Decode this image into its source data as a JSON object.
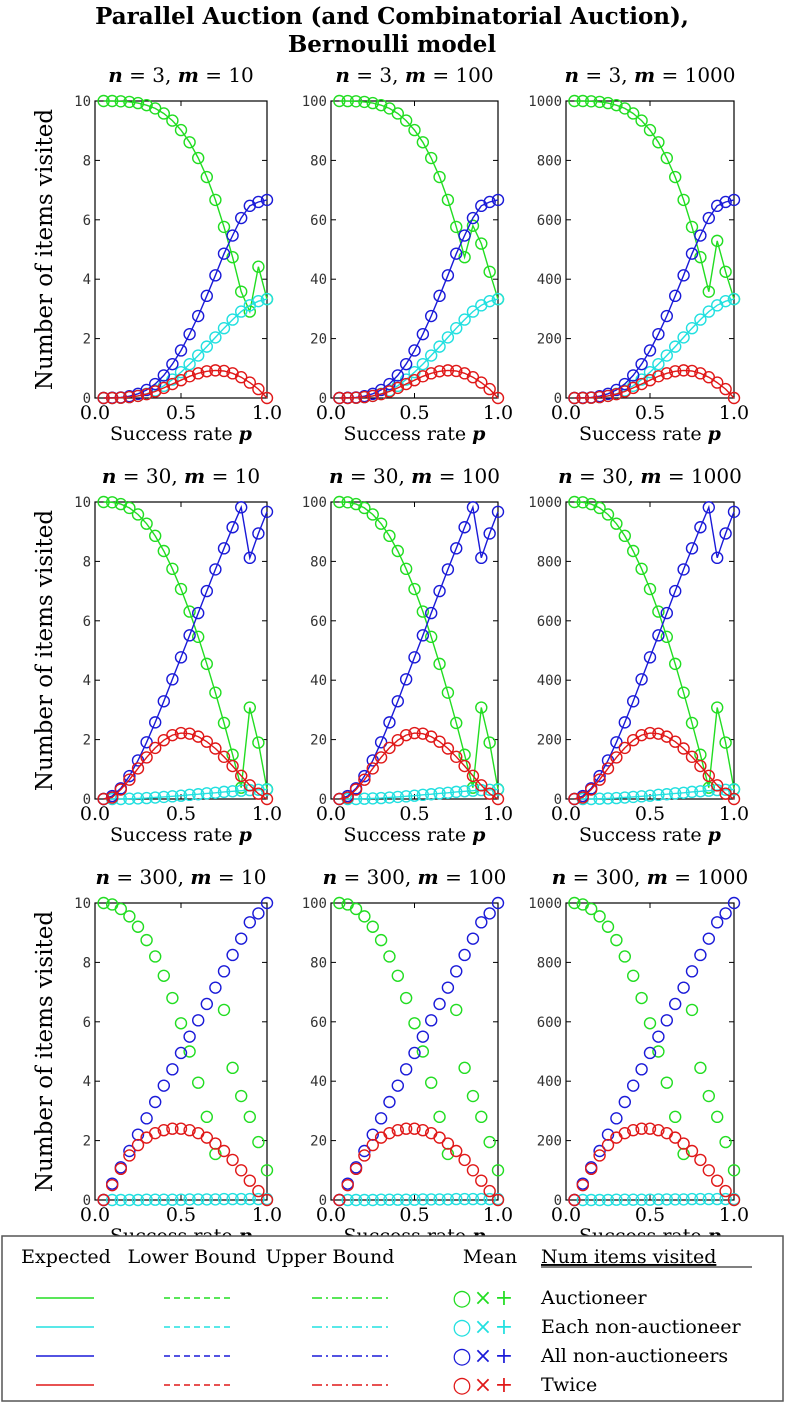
{
  "chart_data": {
    "type": "scatter",
    "title": "Parallel Auction (and Combinatorial Auction),",
    "subtitle": "Bernoulli model",
    "xlabel": "Success rate",
    "xlabel_var": "p",
    "ylabel": "Number of items visited",
    "xlim": [
      0,
      1
    ],
    "x_ticks": [
      "0.0",
      "0.5",
      "1.0"
    ],
    "p_values": [
      0.05,
      0.1,
      0.15,
      0.2,
      0.25,
      0.3,
      0.35,
      0.4,
      0.45,
      0.5,
      0.55,
      0.6,
      0.65,
      0.7,
      0.75,
      0.8,
      0.85,
      0.9,
      0.95,
      1.0
    ],
    "colors": {
      "auctioneer": "#22dd22",
      "each": "#22e0e0",
      "all": "#1a1ad8",
      "twice": "#e01818"
    },
    "panels": [
      {
        "n": "3",
        "m": "10",
        "ylim": [
          0,
          10
        ],
        "y_ticks": [
          "0",
          "2",
          "4",
          "6",
          "8",
          "10"
        ],
        "lines": true,
        "auctioneer": [
          10.0,
          10.0,
          9.99,
          9.97,
          9.93,
          9.86,
          9.75,
          9.58,
          9.34,
          9.02,
          8.61,
          8.08,
          7.44,
          6.67,
          5.76,
          4.74,
          3.58,
          2.91,
          4.42,
          3.33
        ],
        "each": [
          0.0,
          0.0,
          0.01,
          0.03,
          0.07,
          0.14,
          0.25,
          0.41,
          0.62,
          0.87,
          1.14,
          1.43,
          1.73,
          2.04,
          2.35,
          2.64,
          2.91,
          3.12,
          3.26,
          3.33
        ],
        "all": [
          0.0,
          0.01,
          0.02,
          0.06,
          0.14,
          0.27,
          0.47,
          0.76,
          1.14,
          1.6,
          2.15,
          2.76,
          3.44,
          4.13,
          4.86,
          5.47,
          6.06,
          6.47,
          6.6,
          6.67
        ],
        "twice": [
          0.0,
          0.0,
          0.01,
          0.03,
          0.07,
          0.13,
          0.22,
          0.34,
          0.47,
          0.6,
          0.73,
          0.83,
          0.9,
          0.93,
          0.91,
          0.83,
          0.7,
          0.52,
          0.3,
          0.0
        ]
      },
      {
        "n": "3",
        "m": "100",
        "ylim": [
          0,
          100
        ],
        "y_ticks": [
          "0",
          "20",
          "40",
          "60",
          "80",
          "100"
        ],
        "lines": true,
        "auctioneer": [
          100.0,
          99.97,
          99.9,
          99.7,
          99.3,
          98.6,
          97.5,
          95.8,
          93.4,
          90.2,
          86.1,
          80.8,
          74.4,
          66.7,
          57.6,
          47.4,
          58.0,
          52.0,
          42.5,
          33.3
        ],
        "each": [
          0.0,
          0.03,
          0.1,
          0.3,
          0.7,
          1.4,
          2.5,
          4.1,
          6.2,
          8.7,
          11.4,
          14.3,
          17.3,
          20.4,
          23.5,
          26.4,
          29.1,
          31.2,
          32.6,
          33.3
        ],
        "all": [
          0.0,
          0.1,
          0.2,
          0.6,
          1.4,
          2.7,
          4.7,
          7.6,
          11.4,
          16.0,
          21.5,
          27.6,
          34.4,
          41.3,
          48.6,
          54.7,
          60.6,
          64.7,
          66.0,
          66.7
        ],
        "twice": [
          0.0,
          0.0,
          0.1,
          0.3,
          0.7,
          1.3,
          2.2,
          3.4,
          4.7,
          6.0,
          7.3,
          8.3,
          9.0,
          9.3,
          9.1,
          8.3,
          7.0,
          5.2,
          3.0,
          0.0
        ]
      },
      {
        "n": "3",
        "m": "1000",
        "ylim": [
          0,
          1000
        ],
        "y_ticks": [
          "0",
          "200",
          "400",
          "600",
          "800",
          "1000"
        ],
        "lines": true,
        "auctioneer": [
          1000,
          1000,
          999,
          997,
          993,
          986,
          975,
          958,
          934,
          902,
          861,
          808,
          744,
          667,
          576,
          474,
          358,
          529,
          425,
          333
        ],
        "each": [
          0,
          0,
          1,
          3,
          7,
          14,
          25,
          41,
          62,
          87,
          114,
          143,
          173,
          204,
          235,
          264,
          291,
          312,
          326,
          333
        ],
        "all": [
          0,
          1,
          2,
          6,
          14,
          27,
          47,
          76,
          114,
          160,
          215,
          276,
          344,
          413,
          486,
          547,
          606,
          647,
          660,
          667
        ],
        "twice": [
          0,
          0,
          1,
          3,
          7,
          13,
          22,
          34,
          47,
          60,
          73,
          83,
          90,
          93,
          91,
          83,
          70,
          52,
          30,
          0
        ]
      },
      {
        "n": "30",
        "m": "10",
        "ylim": [
          0,
          10
        ],
        "y_ticks": [
          "0",
          "2",
          "4",
          "6",
          "8",
          "10"
        ],
        "lines": true,
        "auctioneer": [
          10.0,
          9.99,
          9.93,
          9.8,
          9.58,
          9.27,
          8.86,
          8.35,
          7.75,
          7.07,
          6.31,
          5.46,
          4.55,
          3.58,
          2.56,
          1.49,
          0.38,
          3.08,
          1.9,
          0.33
        ],
        "each": [
          0.0,
          0.0,
          0.0,
          0.01,
          0.02,
          0.03,
          0.05,
          0.07,
          0.09,
          0.11,
          0.14,
          0.16,
          0.19,
          0.21,
          0.24,
          0.26,
          0.28,
          0.3,
          0.31,
          0.32
        ],
        "all": [
          0.0,
          0.1,
          0.36,
          0.77,
          1.3,
          1.91,
          2.58,
          3.29,
          4.03,
          4.77,
          5.51,
          6.26,
          7.0,
          7.73,
          8.44,
          9.15,
          9.82,
          8.12,
          8.94,
          9.67
        ],
        "twice": [
          0.0,
          0.05,
          0.32,
          0.65,
          1.03,
          1.4,
          1.72,
          1.98,
          2.15,
          2.22,
          2.2,
          2.1,
          1.93,
          1.7,
          1.42,
          1.11,
          0.78,
          0.46,
          0.18,
          0.0
        ]
      },
      {
        "n": "30",
        "m": "100",
        "ylim": [
          0,
          100
        ],
        "y_ticks": [
          "0",
          "20",
          "40",
          "60",
          "80",
          "100"
        ],
        "lines": true,
        "auctioneer": [
          100.0,
          99.9,
          99.3,
          98.0,
          95.8,
          92.7,
          88.6,
          83.5,
          77.5,
          70.7,
          63.1,
          54.6,
          45.5,
          35.8,
          25.6,
          14.9,
          3.8,
          30.8,
          19.0,
          3.3
        ],
        "each": [
          0.0,
          0.0,
          0.0,
          0.1,
          0.2,
          0.3,
          0.5,
          0.7,
          0.9,
          1.1,
          1.4,
          1.6,
          1.9,
          2.1,
          2.4,
          2.6,
          2.8,
          3.0,
          3.1,
          3.2
        ],
        "all": [
          0.0,
          1.0,
          3.6,
          7.7,
          13.0,
          19.1,
          25.8,
          32.9,
          40.3,
          47.7,
          55.1,
          62.6,
          70.0,
          77.3,
          84.4,
          91.5,
          98.2,
          81.2,
          89.4,
          96.7
        ],
        "twice": [
          0.0,
          0.5,
          3.2,
          6.5,
          10.3,
          14.0,
          17.2,
          19.8,
          21.5,
          22.2,
          22.0,
          21.0,
          19.3,
          17.0,
          14.2,
          11.1,
          7.8,
          4.6,
          1.8,
          0.0
        ]
      },
      {
        "n": "30",
        "m": "1000",
        "ylim": [
          0,
          1000
        ],
        "y_ticks": [
          "0",
          "200",
          "400",
          "600",
          "800",
          "1000"
        ],
        "lines": true,
        "auctioneer": [
          1000,
          999,
          993,
          980,
          958,
          927,
          886,
          835,
          775,
          707,
          631,
          546,
          455,
          358,
          256,
          149,
          38,
          308,
          190,
          33
        ],
        "each": [
          0,
          0,
          0,
          1,
          2,
          3,
          5,
          7,
          9,
          11,
          14,
          16,
          19,
          21,
          24,
          26,
          28,
          30,
          31,
          32
        ],
        "all": [
          0,
          10,
          36,
          77,
          130,
          191,
          258,
          329,
          403,
          477,
          551,
          626,
          700,
          773,
          844,
          915,
          982,
          812,
          894,
          967
        ],
        "twice": [
          0,
          5,
          32,
          65,
          103,
          140,
          172,
          198,
          215,
          222,
          220,
          210,
          193,
          170,
          142,
          111,
          78,
          46,
          18,
          0
        ]
      },
      {
        "n": "300",
        "m": "10",
        "ylim": [
          0,
          10
        ],
        "y_ticks": [
          "0",
          "2",
          "4",
          "6",
          "8",
          "10"
        ],
        "lines": false,
        "auctioneer": [
          10.0,
          9.95,
          9.8,
          9.55,
          9.2,
          8.75,
          8.2,
          7.55,
          6.8,
          5.95,
          5.0,
          3.95,
          2.8,
          1.55,
          6.4,
          4.45,
          3.5,
          2.8,
          1.95,
          1.0
        ],
        "each": [
          0.0,
          0.0,
          0.0,
          0.0,
          0.0,
          0.01,
          0.01,
          0.01,
          0.01,
          0.01,
          0.02,
          0.02,
          0.02,
          0.02,
          0.03,
          0.03,
          0.03,
          0.03,
          0.03,
          0.03
        ],
        "all": [
          0.0,
          0.55,
          1.1,
          1.65,
          2.2,
          2.75,
          3.3,
          3.85,
          4.4,
          4.95,
          5.5,
          6.05,
          6.6,
          7.15,
          7.7,
          8.25,
          8.8,
          9.35,
          9.65,
          10.0
        ],
        "twice": [
          0.0,
          0.5,
          1.05,
          1.5,
          1.85,
          2.1,
          2.25,
          2.35,
          2.4,
          2.4,
          2.35,
          2.25,
          2.1,
          1.9,
          1.65,
          1.35,
          1.0,
          0.65,
          0.3,
          0.0
        ]
      },
      {
        "n": "300",
        "m": "100",
        "ylim": [
          0,
          100
        ],
        "y_ticks": [
          "0",
          "20",
          "40",
          "60",
          "80",
          "100"
        ],
        "lines": false,
        "auctioneer": [
          100.0,
          99.5,
          98.0,
          95.5,
          92.0,
          87.5,
          82.0,
          75.5,
          68.0,
          59.5,
          50.0,
          39.5,
          28.0,
          15.5,
          64.0,
          44.5,
          35.0,
          28.0,
          19.5,
          10.0
        ],
        "each": [
          0.0,
          0.0,
          0.0,
          0.0,
          0.0,
          0.1,
          0.1,
          0.1,
          0.1,
          0.1,
          0.2,
          0.2,
          0.2,
          0.2,
          0.3,
          0.3,
          0.3,
          0.3,
          0.3,
          0.3
        ],
        "all": [
          0.0,
          5.5,
          11.0,
          16.5,
          22.0,
          27.5,
          33.0,
          38.5,
          44.0,
          49.5,
          55.0,
          60.5,
          66.0,
          71.5,
          77.0,
          82.5,
          88.0,
          93.5,
          96.5,
          100.0
        ],
        "twice": [
          0.0,
          5.0,
          10.5,
          15.0,
          18.5,
          21.0,
          22.5,
          23.5,
          24.0,
          24.0,
          23.5,
          22.5,
          21.0,
          19.0,
          16.5,
          13.5,
          10.0,
          6.5,
          3.0,
          0.0
        ]
      },
      {
        "n": "300",
        "m": "1000",
        "ylim": [
          0,
          1000
        ],
        "y_ticks": [
          "0",
          "200",
          "400",
          "600",
          "800",
          "1000"
        ],
        "lines": false,
        "auctioneer": [
          1000,
          995,
          980,
          955,
          920,
          875,
          820,
          755,
          680,
          595,
          500,
          395,
          280,
          155,
          640,
          445,
          350,
          280,
          195,
          100
        ],
        "each": [
          0,
          0,
          0,
          0,
          0,
          1,
          1,
          1,
          1,
          1,
          2,
          2,
          2,
          2,
          3,
          3,
          3,
          3,
          3,
          3
        ],
        "all": [
          0,
          55,
          110,
          165,
          220,
          275,
          330,
          385,
          440,
          495,
          550,
          605,
          660,
          715,
          770,
          825,
          880,
          935,
          965,
          1000
        ],
        "twice": [
          0,
          50,
          105,
          150,
          185,
          210,
          225,
          235,
          240,
          240,
          235,
          225,
          210,
          190,
          165,
          135,
          100,
          65,
          30,
          0
        ]
      }
    ]
  },
  "legend": {
    "headers": [
      "Expected",
      "Lower Bound",
      "Upper Bound",
      "Mean"
    ],
    "items_header": "Num items visited",
    "rows": [
      {
        "key": "auctioneer",
        "label": "Auctioneer",
        "color": "#22dd22"
      },
      {
        "key": "each",
        "label": "Each non-auctioneer",
        "color": "#22e0e0"
      },
      {
        "key": "all",
        "label": "All non-auctioneers",
        "color": "#1a1ad8"
      },
      {
        "key": "twice",
        "label": "Twice",
        "color": "#e01818"
      }
    ],
    "mean_symbols": [
      "○",
      "×",
      "+"
    ]
  }
}
